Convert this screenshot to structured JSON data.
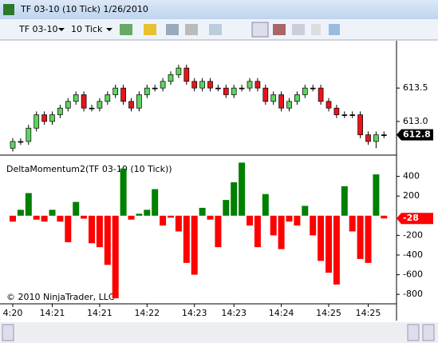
{
  "window": {
    "title": "TF 03-10 (10 Tick)  1/26/2010",
    "instrument": "TF 03-10",
    "interval": "10 Tick"
  },
  "chart_data": [
    {
      "type": "candlestick",
      "categories": [
        "4:20",
        null,
        null,
        null,
        null,
        "14:21",
        null,
        null,
        null,
        null,
        null,
        "14:21",
        null,
        null,
        null,
        null,
        null,
        "14:22",
        null,
        null,
        null,
        null,
        null,
        "14:23",
        null,
        null,
        null,
        null,
        "14:23",
        null,
        null,
        null,
        null,
        null,
        "14:24",
        null,
        null,
        null,
        null,
        null,
        "14:25",
        null,
        null,
        null,
        null,
        "14:25",
        null,
        null
      ],
      "open": [
        612.6,
        612.7,
        612.7,
        612.9,
        613.1,
        613.0,
        613.1,
        613.2,
        613.3,
        613.4,
        613.2,
        613.2,
        613.3,
        613.4,
        613.5,
        613.3,
        613.2,
        613.4,
        613.5,
        613.5,
        613.6,
        613.7,
        613.8,
        613.6,
        613.5,
        613.6,
        613.5,
        613.5,
        613.4,
        613.5,
        613.5,
        613.6,
        613.5,
        613.3,
        613.4,
        613.2,
        613.3,
        613.4,
        613.5,
        613.5,
        613.3,
        613.2,
        613.1,
        613.1,
        613.1,
        612.8,
        612.7,
        612.8
      ],
      "high": [
        612.75,
        612.75,
        612.95,
        613.15,
        613.15,
        613.15,
        613.25,
        613.35,
        613.45,
        613.45,
        613.25,
        613.35,
        613.45,
        613.55,
        613.55,
        613.35,
        613.45,
        613.55,
        613.55,
        613.65,
        613.75,
        613.85,
        613.85,
        613.65,
        613.65,
        613.65,
        613.55,
        613.55,
        613.55,
        613.55,
        613.65,
        613.65,
        613.55,
        613.45,
        613.45,
        613.35,
        613.45,
        613.55,
        613.55,
        613.55,
        613.35,
        613.25,
        613.15,
        613.15,
        613.15,
        612.85,
        612.85,
        612.85
      ],
      "low": [
        612.55,
        612.65,
        612.65,
        612.85,
        612.95,
        612.95,
        613.05,
        613.15,
        613.25,
        613.15,
        613.15,
        613.15,
        613.25,
        613.35,
        613.25,
        613.15,
        613.15,
        613.35,
        613.45,
        613.45,
        613.55,
        613.65,
        613.55,
        613.45,
        613.45,
        613.45,
        613.45,
        613.35,
        613.35,
        613.45,
        613.45,
        613.45,
        613.25,
        613.25,
        613.15,
        613.15,
        613.25,
        613.35,
        613.45,
        613.25,
        613.15,
        613.05,
        613.05,
        613.05,
        612.75,
        612.65,
        612.6,
        612.75
      ],
      "close": [
        612.7,
        612.7,
        612.9,
        613.1,
        613.0,
        613.1,
        613.2,
        613.3,
        613.4,
        613.2,
        613.2,
        613.3,
        613.4,
        613.5,
        613.3,
        613.2,
        613.4,
        613.5,
        613.5,
        613.6,
        613.7,
        613.8,
        613.6,
        613.5,
        613.6,
        613.5,
        613.5,
        613.4,
        613.5,
        613.5,
        613.6,
        613.5,
        613.3,
        613.4,
        613.2,
        613.3,
        613.4,
        613.5,
        613.5,
        613.3,
        613.2,
        613.1,
        613.1,
        613.1,
        612.8,
        612.7,
        612.8,
        612.8
      ],
      "up_color": "#5fd35f",
      "down_color": "#e8141b",
      "ylim": [
        612.52,
        614.16
      ],
      "yticks": [
        {
          "value": 613,
          "label": "613.0"
        },
        613.5
      ],
      "marker": 612.8
    },
    {
      "type": "bar",
      "title": "DeltaMomentum2(TF 03-10 (10 Tick))",
      "annotation": "© 2010 NinjaTrader, LLC",
      "values": [
        -60,
        60,
        230,
        -40,
        -60,
        60,
        -60,
        -270,
        140,
        -30,
        -280,
        -320,
        -500,
        -840,
        480,
        -40,
        20,
        60,
        270,
        -100,
        -20,
        -160,
        -480,
        -600,
        80,
        -40,
        -320,
        160,
        340,
        540,
        -100,
        -320,
        220,
        -200,
        -340,
        -60,
        -100,
        100,
        -200,
        -460,
        -580,
        -700,
        300,
        -160,
        -440,
        -480,
        420,
        -28
      ],
      "positive_color": "#008000",
      "negative_color": "#ff0000",
      "ylim": [
        -880,
        600
      ],
      "yticks": [
        -800,
        -600,
        -400,
        -200,
        200,
        400
      ],
      "marker": -28
    }
  ]
}
